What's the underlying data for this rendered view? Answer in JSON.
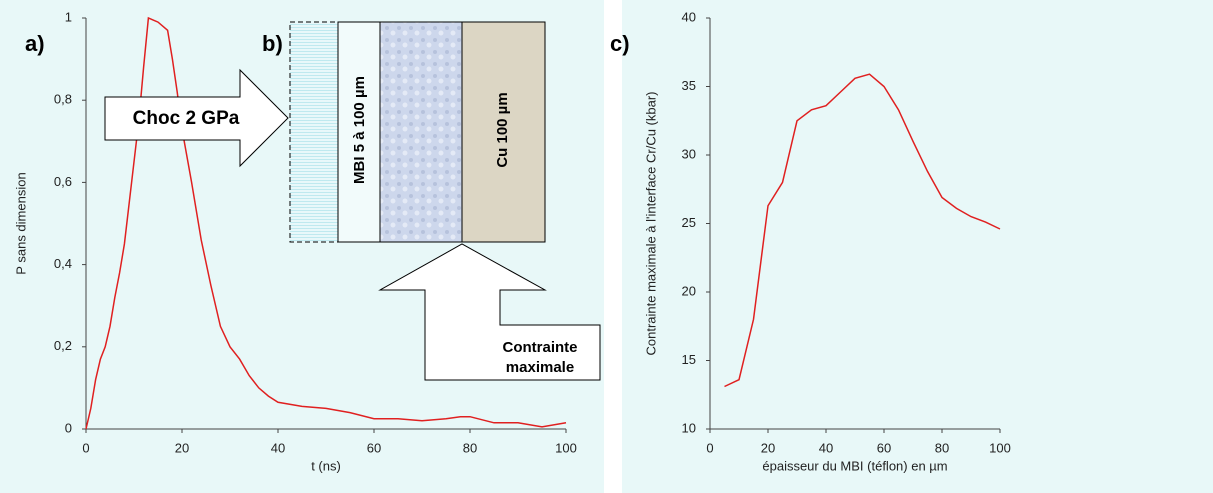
{
  "chart_data": [
    {
      "type": "line",
      "panel_label": "a)",
      "x_label": "t (ns)",
      "y_label": "P sans dimension",
      "color": "#e02020",
      "x": [
        0,
        1,
        2,
        3,
        4,
        5,
        6,
        7,
        8,
        9,
        10,
        11,
        12,
        13,
        14,
        15,
        16,
        17,
        18,
        19,
        20,
        22,
        24,
        26,
        28,
        30,
        32,
        34,
        36,
        38,
        40,
        45,
        50,
        55,
        60,
        65,
        70,
        75,
        78,
        80,
        85,
        90,
        95,
        100
      ],
      "values": [
        0,
        0.05,
        0.12,
        0.17,
        0.2,
        0.25,
        0.32,
        0.38,
        0.45,
        0.55,
        0.65,
        0.75,
        0.88,
        1.0,
        0.995,
        0.99,
        0.98,
        0.97,
        0.9,
        0.82,
        0.73,
        0.6,
        0.46,
        0.35,
        0.25,
        0.2,
        0.17,
        0.13,
        0.1,
        0.08,
        0.065,
        0.055,
        0.05,
        0.04,
        0.025,
        0.025,
        0.02,
        0.025,
        0.03,
        0.03,
        0.015,
        0.015,
        0.005,
        0.015
      ],
      "xlim": [
        0,
        100
      ],
      "ylim": [
        0,
        1
      ],
      "xticks": [
        0,
        20,
        40,
        60,
        80,
        100
      ],
      "yticks": [
        0,
        {
          "value": 0.2,
          "label": "0,2"
        },
        {
          "value": 0.4,
          "label": "0,4"
        },
        {
          "value": 0.6,
          "label": "0,6"
        },
        {
          "value": 0.8,
          "label": "0,8"
        },
        1
      ]
    },
    {
      "type": "line",
      "panel_label": "c)",
      "x_label": "épaisseur du MBI (téflon) en µm",
      "y_label": "Contrainte maximale à l'interface Cr/Cu (kbar)",
      "color": "#e02020",
      "x": [
        5,
        10,
        15,
        20,
        25,
        30,
        35,
        40,
        45,
        50,
        55,
        60,
        65,
        70,
        75,
        80,
        85,
        90,
        95,
        100
      ],
      "values": [
        13.1,
        13.6,
        18,
        26.3,
        28,
        32.5,
        33.3,
        33.6,
        34.6,
        35.6,
        35.9,
        35,
        33.3,
        31,
        28.8,
        26.9,
        26.1,
        25.5,
        25.1,
        24.6
      ],
      "xlim": [
        0,
        100
      ],
      "ylim": [
        10,
        40
      ],
      "xticks": [
        0,
        20,
        40,
        60,
        80,
        100
      ],
      "yticks": [
        10,
        15,
        20,
        25,
        30,
        35,
        40
      ]
    }
  ],
  "diagram": {
    "label": "b)",
    "mbi_layer": "MBI 5 à 100 µm",
    "cu_layer": "Cu 100 µm",
    "shock_arrow": "Choc 2 GPa",
    "stress_arrow": [
      "Contrainte",
      "maximale"
    ]
  }
}
